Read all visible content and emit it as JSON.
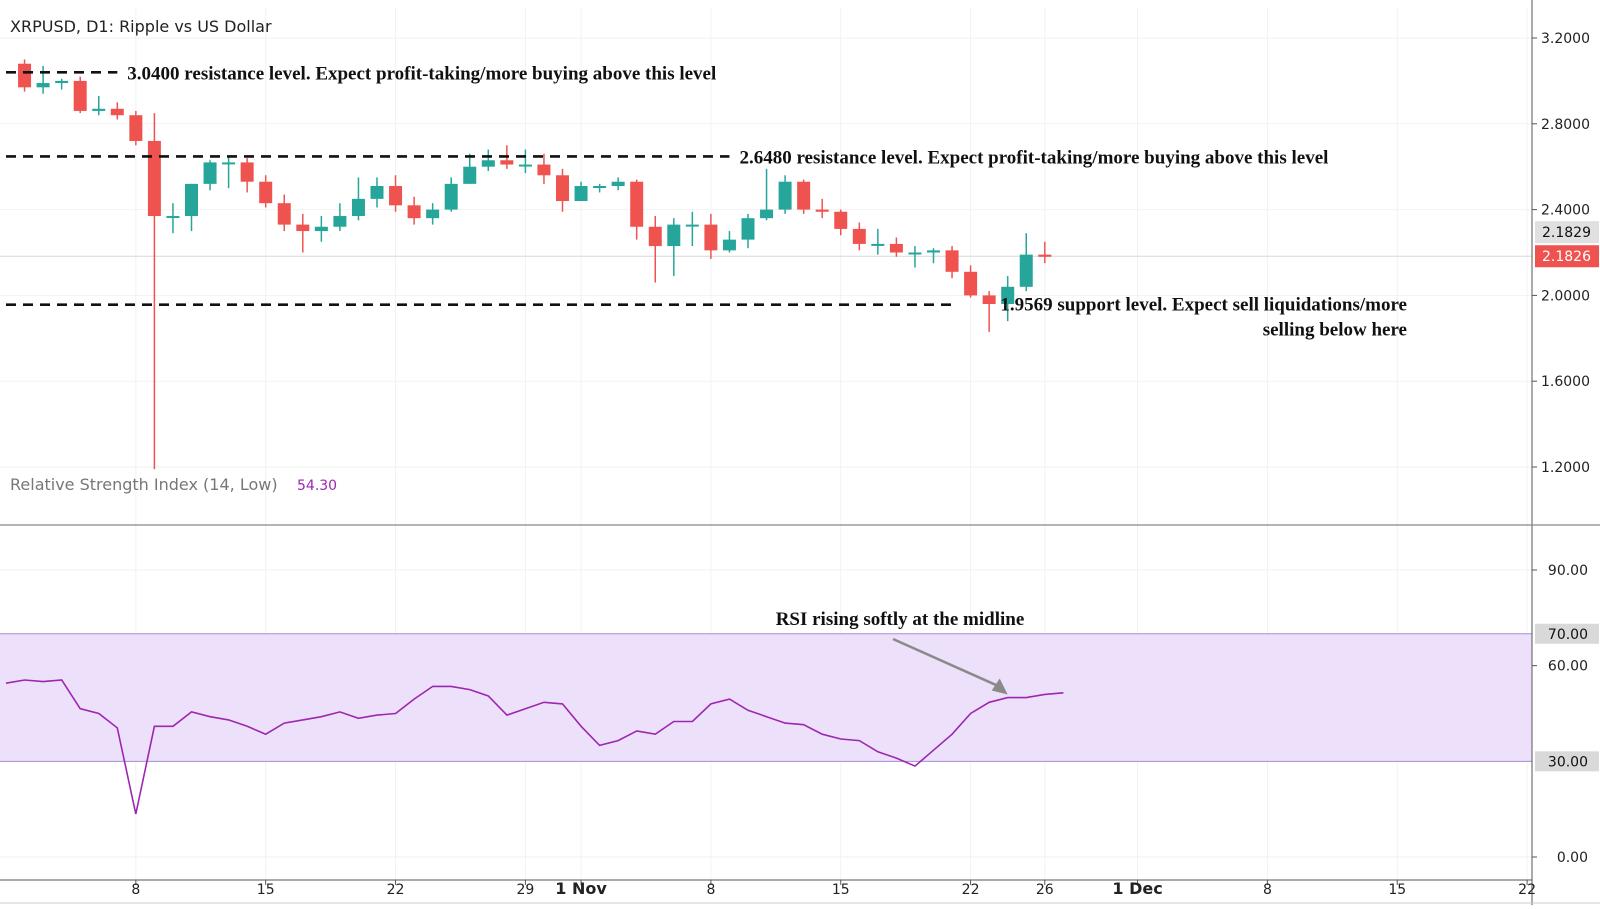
{
  "header": {
    "title": "XRPUSD, D1: Ripple vs US Dollar"
  },
  "rsi_header": {
    "label": "Relative Strength Index (14, Low)",
    "value": "54.30"
  },
  "colors": {
    "up": "#26a69a",
    "down": "#ef5350",
    "rsi_line": "#9c27b0",
    "rsi_band": "#ede0fa",
    "price_tag": "#ef5350",
    "grid": "#f2f2f2"
  },
  "chart_data": [
    {
      "type": "candlestick",
      "title": "XRPUSD, D1: Ripple vs US Dollar",
      "ylim": [
        1.0,
        3.3
      ],
      "price_axis_ticks": [
        "3.2000",
        "2.8000",
        "2.4000",
        "2.0000",
        "1.6000",
        "1.2000"
      ],
      "price_axis_tick_values": [
        3.2,
        2.8,
        2.4,
        2.0,
        1.6,
        1.2
      ],
      "x_tick_labels": [
        "8",
        "15",
        "22",
        "29",
        "1 Nov",
        "8",
        "15",
        "22",
        "26",
        "1 Dec",
        "8",
        "15",
        "22"
      ],
      "x_tick_days": [
        7,
        14,
        21,
        28,
        31,
        38,
        45,
        52,
        56,
        61,
        68,
        75,
        82
      ],
      "x_tick_bold": [
        false,
        false,
        false,
        false,
        true,
        false,
        false,
        false,
        false,
        true,
        false,
        false,
        false
      ],
      "last_price_labels": [
        "2.1829",
        "2.1826"
      ],
      "last_price_values": [
        2.1829,
        2.1826
      ],
      "candles": {
        "day": [
          1,
          2,
          3,
          4,
          5,
          6,
          7,
          8,
          9,
          10,
          11,
          12,
          13,
          14,
          15,
          16,
          17,
          18,
          19,
          20,
          21,
          22,
          23,
          24,
          25,
          26,
          27,
          28,
          29,
          30,
          31,
          32,
          33,
          34,
          35,
          36,
          37,
          38,
          39,
          40,
          41,
          42,
          43,
          44,
          45,
          46,
          47,
          48,
          49,
          50,
          51,
          52,
          53,
          54,
          55,
          56
        ],
        "open": [
          3.08,
          2.97,
          2.99,
          3.0,
          2.86,
          2.87,
          2.84,
          2.72,
          2.37,
          2.37,
          2.52,
          2.62,
          2.62,
          2.53,
          2.43,
          2.33,
          2.3,
          2.32,
          2.37,
          2.45,
          2.51,
          2.42,
          2.36,
          2.4,
          2.52,
          2.6,
          2.63,
          2.61,
          2.61,
          2.56,
          2.44,
          2.51,
          2.51,
          2.53,
          2.32,
          2.23,
          2.33,
          2.33,
          2.21,
          2.26,
          2.36,
          2.4,
          2.53,
          2.4,
          2.39,
          2.31,
          2.24,
          2.24,
          2.2,
          2.2,
          2.21,
          2.11,
          2.0,
          1.96,
          2.04,
          2.19
        ],
        "close": [
          2.97,
          2.99,
          3.0,
          2.86,
          2.87,
          2.84,
          2.72,
          2.37,
          2.37,
          2.52,
          2.62,
          2.62,
          2.53,
          2.43,
          2.33,
          2.3,
          2.32,
          2.37,
          2.45,
          2.51,
          2.42,
          2.36,
          2.4,
          2.52,
          2.6,
          2.63,
          2.61,
          2.61,
          2.56,
          2.44,
          2.51,
          2.51,
          2.53,
          2.32,
          2.23,
          2.33,
          2.33,
          2.21,
          2.26,
          2.36,
          2.4,
          2.53,
          2.4,
          2.39,
          2.31,
          2.24,
          2.24,
          2.2,
          2.2,
          2.21,
          2.11,
          2.0,
          1.96,
          2.04,
          2.19,
          2.18
        ],
        "high": [
          3.1,
          3.07,
          3.01,
          3.02,
          2.93,
          2.9,
          2.86,
          2.85,
          2.43,
          2.52,
          2.63,
          2.65,
          2.64,
          2.56,
          2.47,
          2.38,
          2.37,
          2.43,
          2.55,
          2.55,
          2.56,
          2.46,
          2.43,
          2.55,
          2.66,
          2.68,
          2.7,
          2.68,
          2.66,
          2.59,
          2.53,
          2.52,
          2.55,
          2.54,
          2.37,
          2.36,
          2.39,
          2.38,
          2.3,
          2.38,
          2.59,
          2.56,
          2.54,
          2.45,
          2.4,
          2.34,
          2.31,
          2.27,
          2.23,
          2.22,
          2.23,
          2.14,
          2.02,
          2.09,
          2.29,
          2.25
        ],
        "low": [
          2.95,
          2.94,
          2.96,
          2.85,
          2.84,
          2.82,
          2.7,
          1.19,
          2.29,
          2.3,
          2.49,
          2.5,
          2.48,
          2.41,
          2.3,
          2.2,
          2.25,
          2.3,
          2.35,
          2.41,
          2.39,
          2.33,
          2.33,
          2.39,
          2.52,
          2.58,
          2.59,
          2.57,
          2.52,
          2.39,
          2.44,
          2.48,
          2.49,
          2.26,
          2.06,
          2.09,
          2.23,
          2.17,
          2.2,
          2.22,
          2.35,
          2.38,
          2.38,
          2.36,
          2.28,
          2.21,
          2.19,
          2.18,
          2.13,
          2.15,
          2.08,
          1.99,
          1.83,
          1.88,
          2.02,
          2.15
        ]
      },
      "annotations": [
        {
          "price": 3.04,
          "day_from": 0,
          "day_to": 6,
          "text": "3.0400 resistance level. Expect profit-taking/more buying above this level",
          "align": "left"
        },
        {
          "price": 2.648,
          "day_from": 0,
          "day_to": 39,
          "text": "2.6480 resistance level. Expect profit-taking/more buying above this level",
          "align": "left"
        },
        {
          "price": 1.9569,
          "day_from": 0,
          "day_to": 51,
          "text": "1.9569 support level. Expect sell liquidations/more",
          "text2": "selling below here",
          "align": "right"
        }
      ]
    },
    {
      "type": "line",
      "title": "Relative Strength Index (14, Low)",
      "ylim": [
        -5,
        100
      ],
      "axis_ticks": [
        "90.00",
        "60.00",
        "0.00"
      ],
      "axis_tick_values": [
        90,
        60,
        0
      ],
      "band": [
        30,
        70
      ],
      "band_labels": [
        "70.00",
        "30.00"
      ],
      "x": [
        0,
        1,
        2,
        3,
        4,
        5,
        6,
        7,
        8,
        9,
        10,
        11,
        12,
        13,
        14,
        15,
        16,
        17,
        18,
        19,
        20,
        21,
        22,
        23,
        24,
        25,
        26,
        27,
        28,
        29,
        30,
        31,
        32,
        33,
        34,
        35,
        36,
        37,
        38,
        39,
        40,
        41,
        42,
        43,
        44,
        45,
        46,
        47,
        48,
        49,
        50,
        51,
        52,
        53,
        54,
        55,
        56,
        57
      ],
      "y": [
        54.5,
        55.5,
        55.0,
        55.5,
        46.5,
        45.0,
        40.5,
        13.5,
        41.0,
        41.0,
        45.5,
        44.0,
        43.0,
        41.0,
        38.5,
        42.0,
        43.0,
        44.0,
        45.5,
        43.5,
        44.5,
        45.0,
        49.5,
        53.5,
        53.5,
        52.5,
        50.5,
        44.5,
        46.5,
        48.5,
        48.0,
        41.0,
        35.0,
        36.5,
        39.5,
        38.5,
        42.5,
        42.5,
        48.0,
        49.5,
        46.0,
        44.0,
        42.0,
        41.5,
        38.5,
        37.0,
        36.5,
        33.0,
        31.0,
        28.5,
        33.5,
        38.5,
        45.0,
        48.5,
        50.0,
        50.0,
        51.0,
        51.5
      ],
      "annotation": "RSI rising softly at the midline"
    }
  ]
}
